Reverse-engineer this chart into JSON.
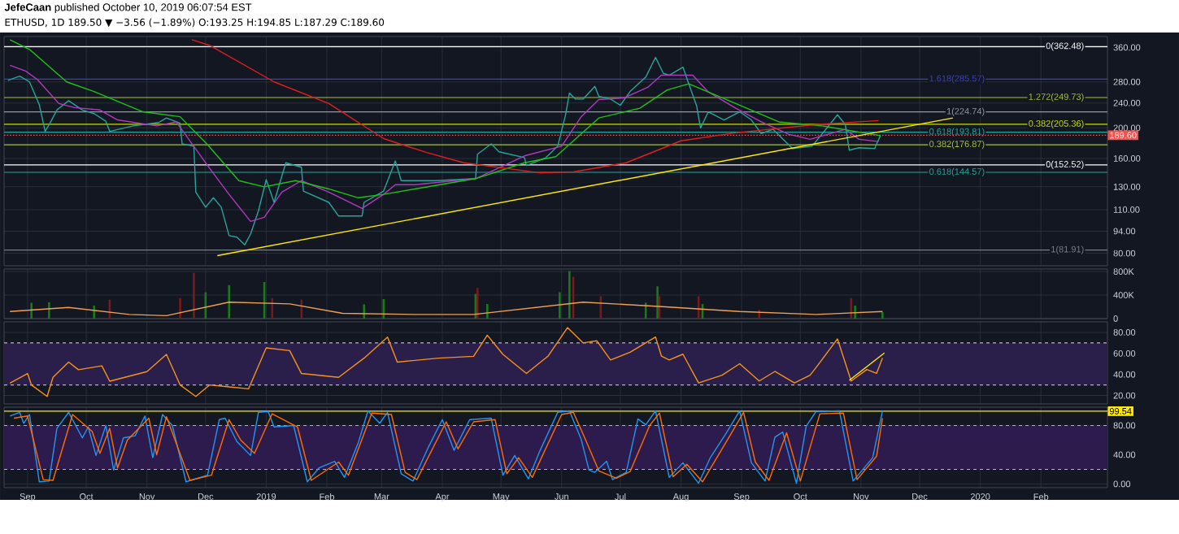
{
  "chart_data": [
    {
      "type": "line",
      "title": "**JefeCaan** published October 10, 2019 06:07:54 EST",
      "subtitle": "ETHUSD, 1D 189.50 ▼ −3.56 (−1.89%) O:193.25 H:194.85 L:187.29 C:189.60",
      "log": true,
      "grid": true,
      "tick_labels": "y",
      "xlim": [
        "2018-08-20",
        "2020-03-06"
      ],
      "xticks": [
        {
          "value": "2018-09-01",
          "label": null
        },
        {
          "value": "2018-10-01",
          "label": null
        },
        {
          "value": "2018-11-01",
          "label": null
        },
        {
          "value": "2018-12-01",
          "label": null
        },
        {
          "value": "2019-01-01",
          "label": null
        },
        {
          "value": "2019-02-01",
          "label": null
        },
        {
          "value": "2019-03-01",
          "label": null
        },
        {
          "value": "2019-04-01",
          "label": null
        },
        {
          "value": "2019-05-01",
          "label": null
        },
        {
          "value": "2019-06-01",
          "label": null
        },
        {
          "value": "2019-07-01",
          "label": null
        },
        {
          "value": "2019-08-01",
          "label": null
        },
        {
          "value": "2019-09-01",
          "label": null
        },
        {
          "value": "2019-10-01",
          "label": null
        },
        {
          "value": "2019-11-01",
          "label": null
        },
        {
          "value": "2019-12-01",
          "label": null
        },
        {
          "value": "2020-01-01",
          "label": null
        },
        {
          "value": "2020-02-01",
          "label": null
        }
      ],
      "ylim": [
        73,
        390
      ],
      "yticks": [
        {
          "value": 80,
          "label": "80.00"
        },
        {
          "value": 94,
          "label": "94.00"
        },
        {
          "value": 110,
          "label": "110.00"
        },
        {
          "value": 130,
          "label": "130.00"
        },
        {
          "value": 160,
          "label": "160.00"
        },
        {
          "value": 200,
          "label": "200.00"
        },
        {
          "value": 240,
          "label": "240.00"
        },
        {
          "value": 280,
          "label": "280.00"
        },
        {
          "value": 360,
          "label": "360.00"
        }
      ],
      "ref_lines": [
        {
          "axis": "y",
          "value": 362.48,
          "label": "0(362.48)",
          "color": "#ffffff"
        },
        {
          "axis": "y",
          "value": 285.57,
          "label": "1.618(285.57)",
          "color": "#3a3fc8"
        },
        {
          "axis": "y",
          "value": 249.73,
          "label": "1.272(249.73)",
          "color": "#a8c23a"
        },
        {
          "axis": "y",
          "value": 224.74,
          "label": "1(224.74)",
          "color": "#9598a1"
        },
        {
          "axis": "y",
          "value": 205.36,
          "label": "0.382(205.36)",
          "color": "#c8e000"
        },
        {
          "axis": "y",
          "value": 193.81,
          "label": "0.618(193.81)",
          "color": "#26a69a"
        },
        {
          "axis": "y",
          "value": 189.6,
          "label": "189.60",
          "color": "#ef5350",
          "line_style": "dotted"
        },
        {
          "axis": "y",
          "value": 176.87,
          "label": "0.382(176.87)",
          "color": "#a8c23a"
        },
        {
          "axis": "y",
          "value": 152.52,
          "label": "0(152.52)",
          "color": "#ffffff"
        },
        {
          "axis": "y",
          "value": 144.57,
          "label": "0.618(144.57)",
          "color": "#26a69a"
        },
        {
          "axis": "y",
          "value": 81.91,
          "label": "1(81.91)",
          "color": "#787b86"
        }
      ],
      "series": [
        {
          "color": "#26a69a",
          "x": [
            "2018-08-22",
            "2018-08-28",
            "2018-09-02",
            "2018-09-07",
            "2018-09-10",
            "2018-09-13",
            "2018-09-16",
            "2018-09-22",
            "2018-09-29",
            "2018-10-05",
            "2018-10-11",
            "2018-10-13",
            "2018-10-25",
            "2018-11-07",
            "2018-11-11",
            "2018-11-18",
            "2018-11-19",
            "2018-11-25",
            "2018-11-26",
            "2018-12-01",
            "2018-12-05",
            "2018-12-09",
            "2018-12-13",
            "2018-12-17",
            "2018-12-21",
            "2018-12-24",
            "2018-12-28",
            "2019-01-01",
            "2019-01-05",
            "2019-01-11",
            "2019-01-19",
            "2019-01-20",
            "2019-02-02",
            "2019-02-07",
            "2019-02-19",
            "2019-02-20",
            "2019-03-02",
            "2019-03-08",
            "2019-03-11",
            "2019-03-21",
            "2019-03-29",
            "2019-04-18",
            "2019-04-19",
            "2019-04-26",
            "2019-04-30",
            "2019-05-13",
            "2019-05-14",
            "2019-05-24",
            "2019-05-30",
            "2019-06-03",
            "2019-06-05",
            "2019-06-08",
            "2019-06-12",
            "2019-06-18",
            "2019-06-20",
            "2019-06-26",
            "2019-07-01",
            "2019-07-06",
            "2019-07-14",
            "2019-07-19",
            "2019-07-23",
            "2019-07-26",
            "2019-08-02",
            "2019-08-05",
            "2019-08-09",
            "2019-08-11",
            "2019-08-15",
            "2019-08-23",
            "2019-08-31",
            "2019-09-06",
            "2019-09-11",
            "2019-09-17",
            "2019-09-27",
            "2019-10-07",
            "2019-10-20",
            "2019-10-24",
            "2019-10-26",
            "2019-10-31",
            "2019-11-08",
            "2019-11-11"
          ],
          "values": [
            283,
            292,
            280,
            237,
            195,
            210,
            228,
            244,
            228,
            222,
            210,
            195,
            203,
            208,
            215,
            207,
            178,
            175,
            125,
            112,
            120,
            112,
            91,
            90,
            85,
            92,
            109,
            137,
            116,
            155,
            150,
            126,
            116,
            105,
            105,
            116,
            126,
            157,
            136,
            136,
            136,
            138,
            165,
            178,
            168,
            161,
            152,
            161,
            175,
            220,
            258,
            247,
            247,
            271,
            252,
            247,
            236,
            261,
            290,
            335,
            298,
            294,
            312,
            276,
            235,
            200,
            225,
            212,
            225,
            212,
            192,
            198,
            172,
            175,
            220,
            205,
            170,
            173,
            172,
            189.6
          ]
        },
        {
          "color": "#b03ac0",
          "x": [
            "2018-08-23",
            "2018-08-31",
            "2018-09-06",
            "2018-09-17",
            "2018-09-25",
            "2018-10-08",
            "2018-10-17",
            "2018-11-06",
            "2018-11-16",
            "2018-12-03",
            "2018-12-13",
            "2018-12-24",
            "2018-12-31",
            "2019-01-09",
            "2019-01-19",
            "2019-02-02",
            "2019-02-19",
            "2019-03-02",
            "2019-03-08",
            "2019-03-18",
            "2019-04-18",
            "2019-05-13",
            "2019-06-01",
            "2019-06-11",
            "2019-06-20",
            "2019-07-03",
            "2019-07-15",
            "2019-07-22",
            "2019-08-07",
            "2019-08-15",
            "2019-08-29",
            "2019-09-11",
            "2019-09-25",
            "2019-10-06",
            "2019-10-24",
            "2019-10-31",
            "2019-11-10"
          ],
          "values": [
            316,
            303,
            285,
            239,
            232,
            228,
            212,
            203,
            209,
            149,
            123,
            101,
            104,
            125,
            136,
            125,
            111,
            123,
            132,
            132,
            138,
            163,
            175,
            217,
            246,
            249,
            269,
            294,
            294,
            260,
            231,
            209,
            191,
            184,
            198,
            184,
            181
          ]
        },
        {
          "color": "#21c11a",
          "x": [
            "2018-08-23",
            "2018-09-02",
            "2018-09-21",
            "2018-10-05",
            "2018-10-30",
            "2018-11-18",
            "2018-12-02",
            "2018-12-18",
            "2018-12-31",
            "2019-01-16",
            "2019-02-02",
            "2019-02-17",
            "2019-03-02",
            "2019-03-18",
            "2019-04-18",
            "2019-05-13",
            "2019-05-29",
            "2019-06-20",
            "2019-07-11",
            "2019-07-25",
            "2019-08-05",
            "2019-08-29",
            "2019-09-20",
            "2019-10-12",
            "2019-11-11"
          ],
          "values": [
            381,
            355,
            280,
            261,
            225,
            217,
            177,
            136,
            130,
            136,
            128,
            120,
            123,
            128,
            138,
            155,
            162,
            215,
            231,
            264,
            276,
            239,
            209,
            203,
            189
          ]
        },
        {
          "color": "#e01f1f",
          "x": [
            "2018-11-24",
            "2018-12-03",
            "2019-01-05",
            "2019-02-02",
            "2019-03-02",
            "2019-03-24",
            "2019-04-12",
            "2019-05-21",
            "2019-06-07",
            "2019-07-04",
            "2019-08-01",
            "2019-08-29",
            "2019-10-09",
            "2019-11-10"
          ],
          "values": [
            381,
            366,
            280,
            239,
            185,
            167,
            155,
            144,
            145,
            155,
            182,
            193,
            205,
            211
          ]
        },
        {
          "color": "#ffeb00",
          "x": [
            "2018-12-07",
            "2019-12-18"
          ],
          "values": [
            78.6,
            215
          ]
        }
      ]
    },
    {
      "type": "bar",
      "grid": true,
      "tick_labels": "y",
      "xlim": [
        "2018-08-20",
        "2020-03-06"
      ],
      "xticks": [
        {
          "value": "2018-09-01",
          "label": null
        },
        {
          "value": "2018-10-01",
          "label": null
        },
        {
          "value": "2018-11-01",
          "label": null
        },
        {
          "value": "2018-12-01",
          "label": null
        },
        {
          "value": "2019-01-01",
          "label": null
        },
        {
          "value": "2019-02-01",
          "label": null
        },
        {
          "value": "2019-03-01",
          "label": null
        },
        {
          "value": "2019-04-01",
          "label": null
        },
        {
          "value": "2019-05-01",
          "label": null
        },
        {
          "value": "2019-06-01",
          "label": null
        },
        {
          "value": "2019-07-01",
          "label": null
        },
        {
          "value": "2019-08-01",
          "label": null
        },
        {
          "value": "2019-09-01",
          "label": null
        },
        {
          "value": "2019-10-01",
          "label": null
        },
        {
          "value": "2019-11-01",
          "label": null
        },
        {
          "value": "2019-12-01",
          "label": null
        },
        {
          "value": "2020-01-01",
          "label": null
        },
        {
          "value": "2020-02-01",
          "label": null
        }
      ],
      "ylim": [
        0,
        843000
      ],
      "yticks": [
        0,
        {
          "value": 400000,
          "label": "400K"
        },
        {
          "value": 800000,
          "label": "800K"
        }
      ],
      "series": [
        {
          "x": [
            "2018-09-03",
            "2018-09-12",
            "2018-10-05",
            "2018-10-13",
            "2018-11-18",
            "2018-11-25",
            "2018-12-01",
            "2018-12-13",
            "2018-12-31",
            "2019-01-04",
            "2019-01-19",
            "2019-02-20",
            "2019-03-02",
            "2019-04-18",
            "2019-04-19",
            "2019-04-24",
            "2019-05-31",
            "2019-06-05",
            "2019-06-07",
            "2019-06-21",
            "2019-07-14",
            "2019-07-20",
            "2019-07-21",
            "2019-08-10",
            "2019-08-12",
            "2019-09-10",
            "2019-10-27",
            "2019-10-29",
            "2019-11-12"
          ],
          "values": [
            270000,
            280000,
            220000,
            320000,
            350000,
            780000,
            450000,
            570000,
            620000,
            350000,
            320000,
            240000,
            330000,
            420000,
            520000,
            250000,
            450000,
            810000,
            710000,
            380000,
            270000,
            550000,
            380000,
            380000,
            250000,
            150000,
            350000,
            220000,
            110000
          ],
          "colors": [
            "#1a7a1a",
            "#1a7a1a",
            "#1a7a1a",
            "#7a1a1a",
            "#7a1a1a",
            "#7a1a1a",
            "#1a7a1a",
            "#1a7a1a",
            "#1a7a1a",
            "#7a1a1a",
            "#7a1a1a",
            "#1a7a1a",
            "#1a7a1a",
            "#1a7a1a",
            "#7a1a1a",
            "#1a7a1a",
            "#1a7a1a",
            "#1a7a1a",
            "#7a1a1a",
            "#7a1a1a",
            "#1a7a1a",
            "#1a7a1a",
            "#7a1a1a",
            "#7a1a1a",
            "#1a7a1a",
            "#7a1a1a",
            "#7a1a1a",
            "#1a7a1a",
            "#1a7a1a"
          ]
        },
        {
          "type": "line",
          "color": "#f0a050",
          "x": [
            "2018-08-23",
            "2018-09-22",
            "2018-10-23",
            "2018-11-11",
            "2018-12-13",
            "2019-01-13",
            "2019-02-09",
            "2019-03-19",
            "2019-04-17",
            "2019-06-12",
            "2019-07-24",
            "2019-08-31",
            "2019-10-09",
            "2019-11-12"
          ],
          "values": [
            120000,
            190000,
            70000,
            50000,
            280000,
            250000,
            90000,
            70000,
            70000,
            280000,
            200000,
            120000,
            70000,
            120000
          ]
        }
      ]
    },
    {
      "type": "line",
      "grid": true,
      "tick_labels": "y",
      "xlim": [
        "2018-08-20",
        "2020-03-06"
      ],
      "xticks": [
        {
          "value": "2018-09-01",
          "label": null
        },
        {
          "value": "2018-10-01",
          "label": null
        },
        {
          "value": "2018-11-01",
          "label": null
        },
        {
          "value": "2018-12-01",
          "label": null
        },
        {
          "value": "2019-01-01",
          "label": null
        },
        {
          "value": "2019-02-01",
          "label": null
        },
        {
          "value": "2019-03-01",
          "label": null
        },
        {
          "value": "2019-04-01",
          "label": null
        },
        {
          "value": "2019-05-01",
          "label": null
        },
        {
          "value": "2019-06-01",
          "label": null
        },
        {
          "value": "2019-07-01",
          "label": null
        },
        {
          "value": "2019-08-01",
          "label": null
        },
        {
          "value": "2019-09-01",
          "label": null
        },
        {
          "value": "2019-10-01",
          "label": null
        },
        {
          "value": "2019-11-01",
          "label": null
        },
        {
          "value": "2019-12-01",
          "label": null
        },
        {
          "value": "2020-01-01",
          "label": null
        },
        {
          "value": "2020-02-01",
          "label": null
        }
      ],
      "ylim": [
        12,
        90
      ],
      "yticks": [
        {
          "value": 20,
          "label": "20.00"
        },
        {
          "value": 40,
          "label": "40.00"
        },
        {
          "value": 60,
          "label": "60.00"
        },
        {
          "value": 80,
          "label": "80.00"
        }
      ],
      "bands": [
        {
          "axis": "y",
          "from": 30,
          "to": 70,
          "color": "#2a1e4a"
        }
      ],
      "ref_lines": [
        {
          "axis": "y",
          "value": 70,
          "color": "#b2b5be",
          "line_style": "dashed"
        },
        {
          "axis": "y",
          "value": 30,
          "color": "#b2b5be",
          "line_style": "dashed"
        }
      ],
      "series": [
        {
          "color": "#f7931a",
          "x": [
            "2018-08-23",
            "2018-09-01",
            "2018-09-03",
            "2018-09-11",
            "2018-09-14",
            "2018-09-22",
            "2018-09-27",
            "2018-10-09",
            "2018-10-13",
            "2018-11-01",
            "2018-11-11",
            "2018-11-18",
            "2018-11-26",
            "2018-12-03",
            "2018-12-13",
            "2018-12-23",
            "2019-01-01",
            "2019-01-13",
            "2019-01-19",
            "2019-02-07",
            "2019-02-20",
            "2019-03-04",
            "2019-03-09",
            "2019-03-30",
            "2019-04-17",
            "2019-04-24",
            "2019-05-02",
            "2019-05-14",
            "2019-05-25",
            "2019-06-04",
            "2019-06-12",
            "2019-06-19",
            "2019-06-26",
            "2019-07-06",
            "2019-07-19",
            "2019-07-22",
            "2019-07-26",
            "2019-08-02",
            "2019-08-10",
            "2019-08-22",
            "2019-08-31",
            "2019-09-10",
            "2019-09-18",
            "2019-09-28",
            "2019-10-06",
            "2019-10-09",
            "2019-10-20",
            "2019-10-27",
            "2019-11-04",
            "2019-11-09",
            "2019-11-12"
          ],
          "values": [
            31.8,
            40.9,
            30,
            19.1,
            37.3,
            51.8,
            44.5,
            48.2,
            33.6,
            42.7,
            59.1,
            30,
            19.1,
            30,
            28.2,
            26.4,
            65.3,
            62.7,
            40.9,
            37.3,
            55.5,
            75.5,
            51.8,
            55.5,
            57.3,
            77.3,
            59.1,
            40.9,
            57.3,
            84.5,
            70,
            72,
            53.8,
            61.1,
            75.6,
            57.5,
            53.8,
            59.3,
            32,
            39.3,
            50.2,
            33.8,
            42.9,
            32,
            39.3,
            46.5,
            73.8,
            33.8,
            44.7,
            41.1,
            55.6
          ]
        },
        {
          "color": "#ffeb00",
          "x": [
            "2019-10-26",
            "2019-11-13"
          ],
          "values": [
            34.4,
            60.4
          ]
        }
      ]
    },
    {
      "type": "line",
      "grid": true,
      "xlim": [
        "2018-08-20",
        "2020-03-06"
      ],
      "xticks": [
        {
          "value": "2018-09-01",
          "label": "Sep"
        },
        {
          "value": "2018-10-01",
          "label": "Oct"
        },
        {
          "value": "2018-11-01",
          "label": "Nov"
        },
        {
          "value": "2018-12-01",
          "label": "Dec"
        },
        {
          "value": "2019-01-01",
          "label": "2019"
        },
        {
          "value": "2019-02-01",
          "label": "Feb"
        },
        {
          "value": "2019-03-01",
          "label": "Mar"
        },
        {
          "value": "2019-04-01",
          "label": "Apr"
        },
        {
          "value": "2019-05-01",
          "label": "May"
        },
        {
          "value": "2019-06-01",
          "label": "Jun"
        },
        {
          "value": "2019-07-01",
          "label": "Jul"
        },
        {
          "value": "2019-08-01",
          "label": "Aug"
        },
        {
          "value": "2019-09-01",
          "label": "Sep"
        },
        {
          "value": "2019-10-01",
          "label": "Oct"
        },
        {
          "value": "2019-11-01",
          "label": "Nov"
        },
        {
          "value": "2019-12-01",
          "label": "Dec"
        },
        {
          "value": "2020-01-01",
          "label": "2020"
        },
        {
          "value": "2020-02-01",
          "label": "Feb"
        }
      ],
      "ylim": [
        -5,
        105
      ],
      "yticks": [
        {
          "value": 0,
          "label": "0.00"
        },
        {
          "value": 40,
          "label": "40.00"
        },
        {
          "value": 80,
          "label": "80.00"
        }
      ],
      "bands": [
        {
          "axis": "y",
          "from": 20,
          "to": 80,
          "color": "#2d1b4e"
        }
      ],
      "ref_lines": [
        {
          "axis": "y",
          "value": 80,
          "color": "#b2b5be",
          "line_style": "dashed"
        },
        {
          "axis": "y",
          "value": 20,
          "color": "#b2b5be",
          "line_style": "dashed"
        },
        {
          "axis": "y",
          "value": 99.54,
          "label": "99.54",
          "color": "#ffeb00"
        }
      ],
      "series": [
        {
          "color": "#2196f3",
          "x": [
            "2018-08-23",
            "2018-08-28",
            "2018-08-30",
            "2018-09-02",
            "2018-09-07",
            "2018-09-12",
            "2018-09-16",
            "2018-09-22",
            "2018-09-29",
            "2018-10-02",
            "2018-10-06",
            "2018-10-11",
            "2018-10-15",
            "2018-10-20",
            "2018-10-26",
            "2018-10-31",
            "2018-11-04",
            "2018-11-09",
            "2018-11-14",
            "2018-11-21",
            "2018-12-02",
            "2018-12-08",
            "2018-12-11",
            "2018-12-17",
            "2018-12-24",
            "2018-12-28",
            "2019-01-02",
            "2019-01-05",
            "2019-01-15",
            "2019-01-22",
            "2019-01-28",
            "2019-02-05",
            "2019-02-10",
            "2019-02-17",
            "2019-02-22",
            "2019-02-28",
            "2019-03-04",
            "2019-03-11",
            "2019-03-17",
            "2019-03-25",
            "2019-04-01",
            "2019-04-07",
            "2019-04-15",
            "2019-04-26",
            "2019-05-02",
            "2019-05-08",
            "2019-05-15",
            "2019-05-21",
            "2019-05-30",
            "2019-06-05",
            "2019-06-11",
            "2019-06-15",
            "2019-06-18",
            "2019-06-24",
            "2019-06-27",
            "2019-07-04",
            "2019-07-10",
            "2019-07-14",
            "2019-07-19",
            "2019-07-26",
            "2019-08-02",
            "2019-08-10",
            "2019-08-16",
            "2019-08-24",
            "2019-08-31",
            "2019-09-06",
            "2019-09-13",
            "2019-09-18",
            "2019-09-22",
            "2019-09-29",
            "2019-10-04",
            "2019-10-09",
            "2019-10-21",
            "2019-10-28",
            "2019-11-07",
            "2019-11-12"
          ],
          "values": [
            93,
            98,
            83,
            95,
            3,
            4,
            76,
            98,
            63,
            78,
            39,
            80,
            19,
            63,
            66,
            93,
            36,
            95,
            80,
            3,
            12,
            88,
            90,
            58,
            39,
            98,
            99,
            78,
            80,
            3,
            22,
            31,
            9,
            56,
            100,
            83,
            98,
            14,
            4,
            51,
            88,
            46,
            88,
            90,
            12,
            39,
            7,
            46,
            98,
            100,
            61,
            19,
            16,
            31,
            6,
            16,
            89,
            81,
            100,
            9,
            29,
            1,
            36,
            69,
            100,
            29,
            4,
            64,
            71,
            1,
            79,
            99,
            100,
            4,
            36,
            100
          ]
        },
        {
          "color": "#ff6d00",
          "x": [
            "2018-08-25",
            "2018-09-01",
            "2018-09-09",
            "2018-09-14",
            "2018-09-24",
            "2018-10-04",
            "2018-10-08",
            "2018-10-13",
            "2018-10-17",
            "2018-10-22",
            "2018-11-02",
            "2018-11-06",
            "2018-11-11",
            "2018-11-23",
            "2018-12-04",
            "2018-12-13",
            "2018-12-19",
            "2018-12-26",
            "2019-01-04",
            "2019-01-17",
            "2019-01-24",
            "2019-02-07",
            "2019-02-12",
            "2019-02-24",
            "2019-03-06",
            "2019-03-13",
            "2019-03-19",
            "2019-04-03",
            "2019-04-09",
            "2019-04-17",
            "2019-04-28",
            "2019-05-04",
            "2019-05-10",
            "2019-05-17",
            "2019-06-01",
            "2019-06-07",
            "2019-06-13",
            "2019-06-20",
            "2019-06-29",
            "2019-07-06",
            "2019-07-16",
            "2019-07-21",
            "2019-07-28",
            "2019-08-04",
            "2019-08-12",
            "2019-08-26",
            "2019-09-02",
            "2019-09-08",
            "2019-09-15",
            "2019-09-24",
            "2019-10-01",
            "2019-10-11",
            "2019-10-23",
            "2019-10-30",
            "2019-11-09",
            "2019-11-12"
          ],
          "values": [
            90,
            93,
            6,
            5,
            95,
            72,
            42,
            76,
            22,
            60,
            90,
            40,
            92,
            5,
            12,
            88,
            60,
            42,
            96,
            78,
            5,
            30,
            12,
            97,
            95,
            16,
            6,
            85,
            48,
            85,
            88,
            14,
            36,
            9,
            95,
            98,
            62,
            18,
            8,
            17,
            80,
            97,
            10,
            27,
            3,
            66,
            98,
            30,
            5,
            70,
            4,
            96,
            97,
            6,
            38,
            90
          ]
        }
      ]
    }
  ]
}
